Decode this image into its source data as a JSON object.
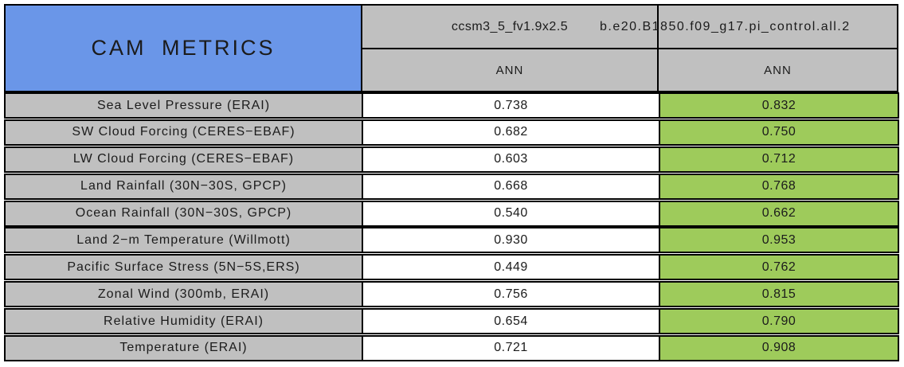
{
  "colors": {
    "header_blue": "#6a96e8",
    "header_gray": "#c0c0c0",
    "value_green": "#9ecb5b",
    "border": "#000000"
  },
  "table": {
    "title": "CAM METRICS",
    "columns": [
      {
        "model": "ccsm3_5_fv1.9x2.5",
        "season": "ANN"
      },
      {
        "model": "b.e20.B1850.f09_g17.pi_control.all.2",
        "season": "ANN"
      }
    ],
    "rows": [
      {
        "label": "Sea Level Pressure (ERAI)",
        "values": [
          "0.738",
          "0.832"
        ]
      },
      {
        "label": "SW Cloud Forcing (CERES−EBAF)",
        "values": [
          "0.682",
          "0.750"
        ]
      },
      {
        "label": "LW Cloud Forcing (CERES−EBAF)",
        "values": [
          "0.603",
          "0.712"
        ]
      },
      {
        "label": "Land Rainfall (30N−30S, GPCP)",
        "values": [
          "0.668",
          "0.768"
        ]
      },
      {
        "label": "Ocean Rainfall (30N−30S, GPCP)",
        "values": [
          "0.540",
          "0.662"
        ]
      },
      {
        "label": "Land 2−m Temperature (Willmott)",
        "values": [
          "0.930",
          "0.953"
        ]
      },
      {
        "label": "Pacific Surface Stress (5N−5S,ERS)",
        "values": [
          "0.449",
          "0.762"
        ]
      },
      {
        "label": "Zonal Wind (300mb, ERAI)",
        "values": [
          "0.756",
          "0.815"
        ]
      },
      {
        "label": "Relative Humidity (ERAI)",
        "values": [
          "0.654",
          "0.790"
        ]
      },
      {
        "label": "Temperature (ERAI)",
        "values": [
          "0.721",
          "0.908"
        ]
      }
    ]
  },
  "chart_data": {
    "type": "table",
    "title": "CAM METRICS",
    "categories": [
      "Sea Level Pressure (ERAI)",
      "SW Cloud Forcing (CERES-EBAF)",
      "LW Cloud Forcing (CERES-EBAF)",
      "Land Rainfall (30N-30S, GPCP)",
      "Ocean Rainfall (30N-30S, GPCP)",
      "Land 2-m Temperature (Willmott)",
      "Pacific Surface Stress (5N-5S,ERS)",
      "Zonal Wind (300mb, ERAI)",
      "Relative Humidity (ERAI)",
      "Temperature (ERAI)"
    ],
    "series": [
      {
        "name": "ccsm3_5_fv1.9x2.5",
        "season": "ANN",
        "values": [
          0.738,
          0.682,
          0.603,
          0.668,
          0.54,
          0.93,
          0.449,
          0.756,
          0.654,
          0.721
        ]
      },
      {
        "name": "b.e20.B1850.f09_g17.pi_control.all.2",
        "season": "ANN",
        "values": [
          0.832,
          0.75,
          0.712,
          0.768,
          0.662,
          0.953,
          0.762,
          0.815,
          0.79,
          0.908
        ]
      }
    ],
    "layout_hints": {
      "highlighted_series": "b.e20.B1850.f09_g17.pi_control.all.2",
      "highlight_color": "#9ecb5b"
    }
  }
}
